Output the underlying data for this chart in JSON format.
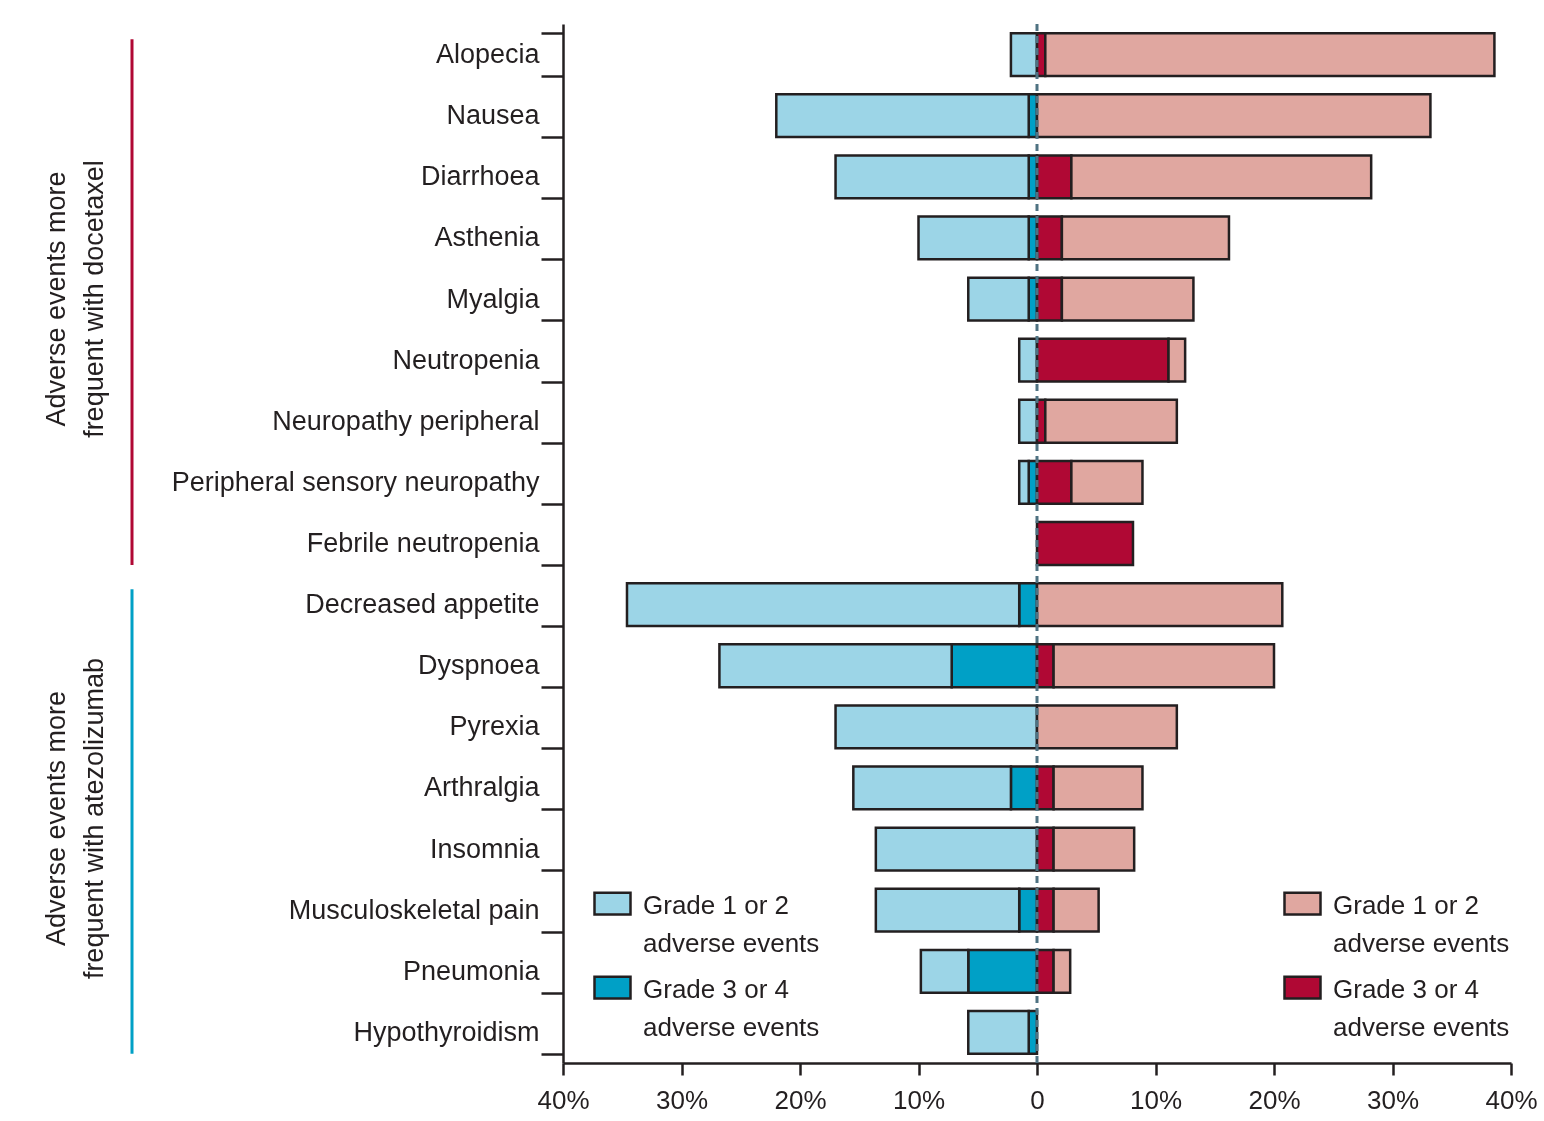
{
  "chart_data": {
    "type": "bar",
    "orientation": "horizontal",
    "stacked": true,
    "categories": [
      "Alopecia",
      "Nausea",
      "Diarrhoea",
      "Asthenia",
      "Myalgia",
      "Neutropenia",
      "Neuropathy peripheral",
      "Peripheral sensory neuropathy",
      "Febrile neutropenia",
      "Decreased appetite",
      "Dyspnoea",
      "Pyrexia",
      "Arthralgia",
      "Insomnia",
      "Musculoskeletal pain",
      "Pneumonia",
      "Hypothyroidism"
    ],
    "series": [
      {
        "name": "Grade 3 or 4 adverse events",
        "color": "#00a0c6",
        "values": [
          0,
          -0.7,
          -0.7,
          -0.7,
          -0.7,
          0,
          0,
          -0.7,
          0,
          -1.5,
          -7.2,
          0,
          -2.2,
          0,
          -1.5,
          -5.8,
          -0.7
        ]
      },
      {
        "name": "Grade 1 or 2 adverse events",
        "color": "#9cd5e7",
        "values": [
          -2.2,
          -21.3,
          -16.3,
          -9.3,
          -5.1,
          -1.5,
          -1.5,
          -0.8,
          0,
          -33.1,
          -19.6,
          -17.0,
          -13.3,
          -13.6,
          -12.1,
          -4.0,
          -5.1
        ]
      },
      {
        "name": "Grade 3 or 4 adverse events",
        "color": "#b00834",
        "values": [
          0.7,
          0,
          2.9,
          2.1,
          2.1,
          11.1,
          0.7,
          2.9,
          8.1,
          0,
          1.4,
          0,
          1.4,
          1.4,
          1.4,
          1.4,
          0
        ]
      },
      {
        "name": "Grade 1 or 2 adverse events",
        "color": "#e0a7a0",
        "values": [
          37.9,
          33.2,
          25.3,
          14.1,
          11.1,
          1.4,
          11.1,
          6.0,
          0,
          20.7,
          18.6,
          11.8,
          7.5,
          6.8,
          3.8,
          1.4,
          0
        ]
      }
    ],
    "xlim": [
      -40,
      40
    ],
    "xticks": [
      {
        "value": -40,
        "label": "40%"
      },
      {
        "value": -30,
        "label": "30%"
      },
      {
        "value": -20,
        "label": "20%"
      },
      {
        "value": -10,
        "label": "10%"
      },
      0,
      {
        "value": 10,
        "label": "10%"
      },
      {
        "value": 20,
        "label": "20%"
      },
      {
        "value": 30,
        "label": "30%"
      },
      {
        "value": 40,
        "label": "40%"
      }
    ],
    "ref_lines": [
      {
        "axis": "x",
        "value": 0,
        "color": "#4f7282",
        "line_style": "dashed"
      }
    ],
    "annotations": [
      "Adverse events more frequent with docetaxel",
      "Adverse events more frequent with atezolizumab"
    ],
    "legend": "bottom"
  }
}
